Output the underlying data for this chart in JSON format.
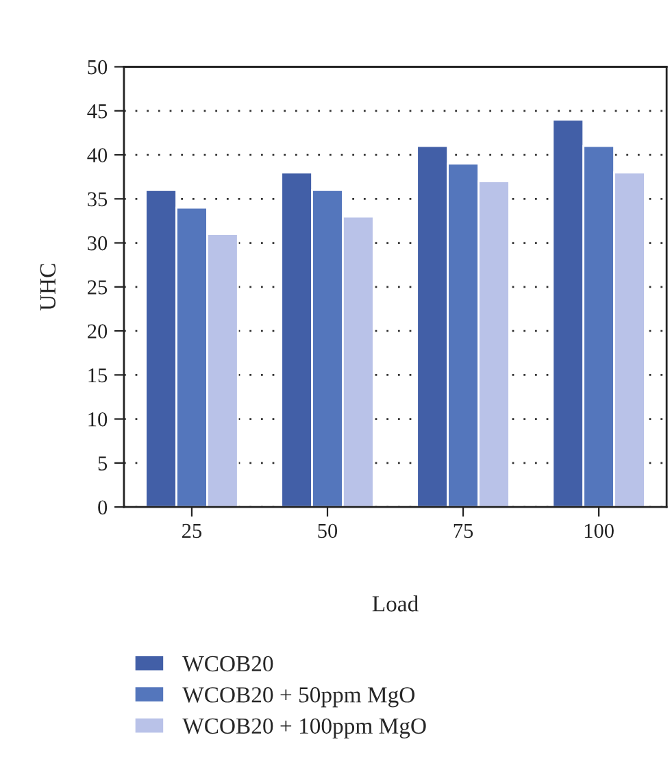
{
  "chart_data": {
    "type": "bar",
    "xlabel": "Load",
    "ylabel": "UHC",
    "categories": [
      "25",
      "50",
      "75",
      "100"
    ],
    "series": [
      {
        "name": "WCOB20",
        "color": "#425fa7",
        "values": [
          36,
          38,
          41,
          44
        ]
      },
      {
        "name": "WCOB20 + 50ppm MgO",
        "color": "#5476bc",
        "values": [
          34,
          36,
          39,
          41
        ]
      },
      {
        "name": "WCOB20 + 100ppm MgO",
        "color": "#b9c2e8",
        "values": [
          31,
          33,
          37,
          38
        ]
      }
    ],
    "ylim": [
      0,
      50
    ],
    "yticks": [
      0,
      5,
      10,
      15,
      20,
      25,
      30,
      35,
      40,
      45,
      50
    ],
    "grid": "y",
    "legend": "bottom left",
    "line_style": "dotted"
  }
}
